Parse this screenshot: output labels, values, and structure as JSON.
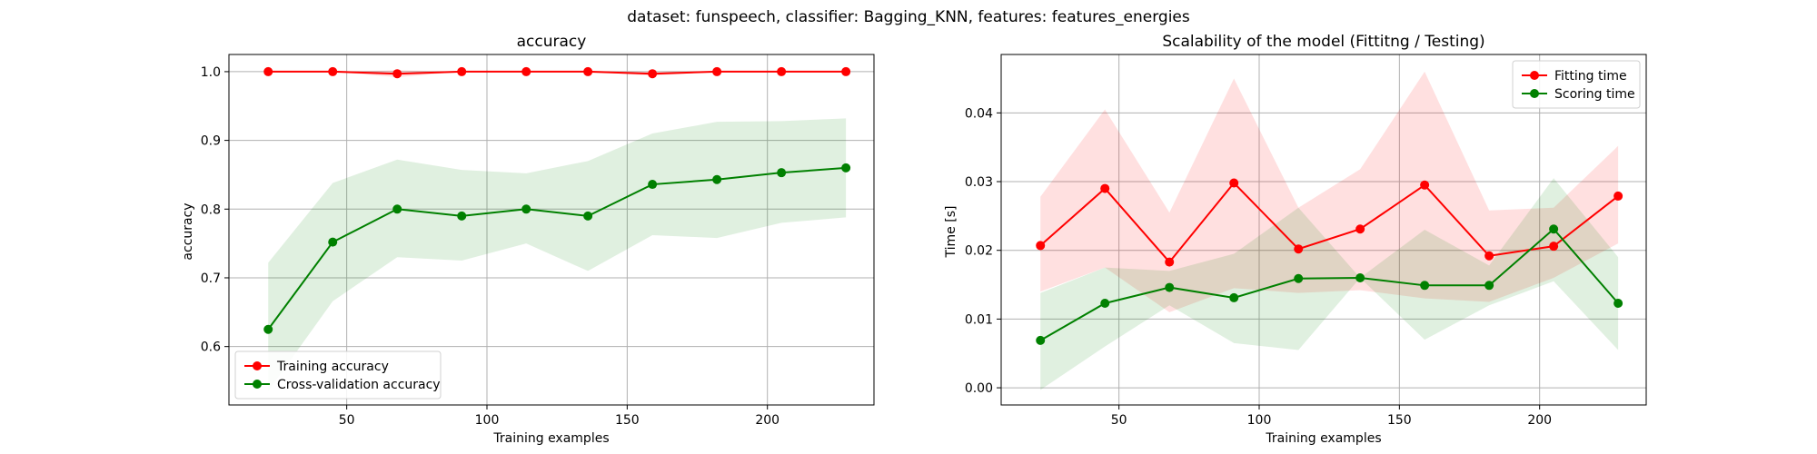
{
  "figure": {
    "title": "dataset: funspeech, classifier: Bagging_KNN, features: features_energies"
  },
  "chart_data": [
    {
      "type": "line",
      "title": "accuracy",
      "xlabel": "Training examples",
      "ylabel": "accuracy",
      "xlim": [
        8,
        238
      ],
      "ylim": [
        0.515,
        1.025
      ],
      "xticks": [
        50,
        100,
        150,
        200
      ],
      "yticks": [
        0.6,
        0.7,
        0.8,
        0.9,
        1.0
      ],
      "ytick_labels": [
        "0.6",
        "0.7",
        "0.8",
        "0.9",
        "1.0"
      ],
      "grid": true,
      "legend_position": "lower-left",
      "x": [
        22,
        45,
        68,
        91,
        114,
        136,
        159,
        182,
        205,
        228
      ],
      "series": [
        {
          "name": "Training accuracy",
          "color": "#ff0000",
          "marker": "circle",
          "values": [
            1.0,
            1.0,
            0.997,
            1.0,
            1.0,
            1.0,
            0.997,
            1.0,
            1.0,
            1.0
          ],
          "band_lower": [
            1.0,
            1.0,
            0.992,
            1.0,
            1.0,
            1.0,
            0.994,
            1.0,
            1.0,
            1.0
          ],
          "band_upper": [
            1.0,
            1.0,
            1.002,
            1.0,
            1.0,
            1.0,
            1.0,
            1.0,
            1.0,
            1.0
          ]
        },
        {
          "name": "Cross-validation accuracy",
          "color": "#008000",
          "marker": "circle",
          "values": [
            0.625,
            0.752,
            0.8,
            0.79,
            0.8,
            0.79,
            0.836,
            0.843,
            0.853,
            0.86
          ],
          "band_lower": [
            0.535,
            0.666,
            0.73,
            0.725,
            0.75,
            0.71,
            0.762,
            0.758,
            0.78,
            0.788
          ],
          "band_upper": [
            0.722,
            0.838,
            0.872,
            0.857,
            0.852,
            0.87,
            0.91,
            0.927,
            0.928,
            0.932
          ]
        }
      ]
    },
    {
      "type": "line",
      "title": "Scalability of the model (Fittitng / Testing)",
      "xlabel": "Training examples",
      "ylabel": "Time [s]",
      "xlim": [
        8,
        238
      ],
      "ylim": [
        -0.0025,
        0.0485
      ],
      "xticks": [
        50,
        100,
        150,
        200
      ],
      "yticks": [
        0.0,
        0.01,
        0.02,
        0.03,
        0.04
      ],
      "ytick_labels": [
        "0.00",
        "0.01",
        "0.02",
        "0.03",
        "0.04"
      ],
      "grid": true,
      "legend_position": "upper-right",
      "x": [
        22,
        45,
        68,
        91,
        114,
        136,
        159,
        182,
        205,
        228
      ],
      "series": [
        {
          "name": "Fitting time",
          "color": "#ff0000",
          "marker": "circle",
          "values": [
            0.0207,
            0.029,
            0.0183,
            0.0298,
            0.0202,
            0.0231,
            0.0295,
            0.0192,
            0.0206,
            0.0279
          ],
          "band_lower": [
            0.014,
            0.0175,
            0.011,
            0.0145,
            0.0138,
            0.0142,
            0.013,
            0.0125,
            0.016,
            0.021
          ],
          "band_upper": [
            0.0278,
            0.0405,
            0.0255,
            0.045,
            0.0262,
            0.0318,
            0.046,
            0.0258,
            0.0262,
            0.0352
          ]
        },
        {
          "name": "Scoring time",
          "color": "#008000",
          "marker": "circle",
          "values": [
            0.0069,
            0.0123,
            0.0146,
            0.0131,
            0.0159,
            0.016,
            0.0149,
            0.0149,
            0.0231,
            0.0123
          ],
          "band_lower": [
            -0.0003,
            0.006,
            0.012,
            0.0065,
            0.0055,
            0.016,
            0.007,
            0.012,
            0.0155,
            0.0055
          ],
          "band_upper": [
            0.0138,
            0.0175,
            0.017,
            0.0195,
            0.0262,
            0.016,
            0.023,
            0.0178,
            0.0305,
            0.019
          ]
        }
      ]
    }
  ]
}
